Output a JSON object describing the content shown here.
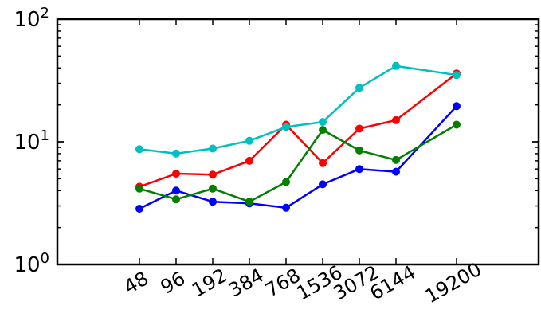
{
  "chart_data": {
    "type": "line",
    "title": "",
    "xlabel": "",
    "ylabel": "",
    "x_scale": "categorical",
    "y_scale": "log",
    "ylim": [
      1,
      100
    ],
    "grid": false,
    "legend": "none",
    "categories": [
      "48",
      "96",
      "192",
      "384",
      "768",
      "1536",
      "3072",
      "6144",
      "19200"
    ],
    "y_ticks": [
      {
        "value": 1,
        "base": "10",
        "exp": "0"
      },
      {
        "value": 10,
        "base": "10",
        "exp": "1"
      },
      {
        "value": 100,
        "base": "10",
        "exp": "2"
      }
    ],
    "series": [
      {
        "color": "#0000ff",
        "values": [
          2.85,
          4.0,
          3.25,
          3.15,
          2.9,
          4.5,
          6.0,
          5.7,
          19.5
        ]
      },
      {
        "color": "#ff0000",
        "values": [
          4.3,
          5.5,
          5.4,
          7.0,
          13.8,
          6.7,
          12.8,
          15.0,
          36.0
        ]
      },
      {
        "color": "#008000",
        "values": [
          4.15,
          3.4,
          4.15,
          3.25,
          4.7,
          12.5,
          8.5,
          7.1,
          13.8
        ]
      },
      {
        "color": "#00bfbf",
        "values": [
          8.7,
          8.0,
          8.8,
          10.2,
          13.2,
          14.5,
          27.5,
          41.5,
          35.0
        ]
      }
    ]
  }
}
